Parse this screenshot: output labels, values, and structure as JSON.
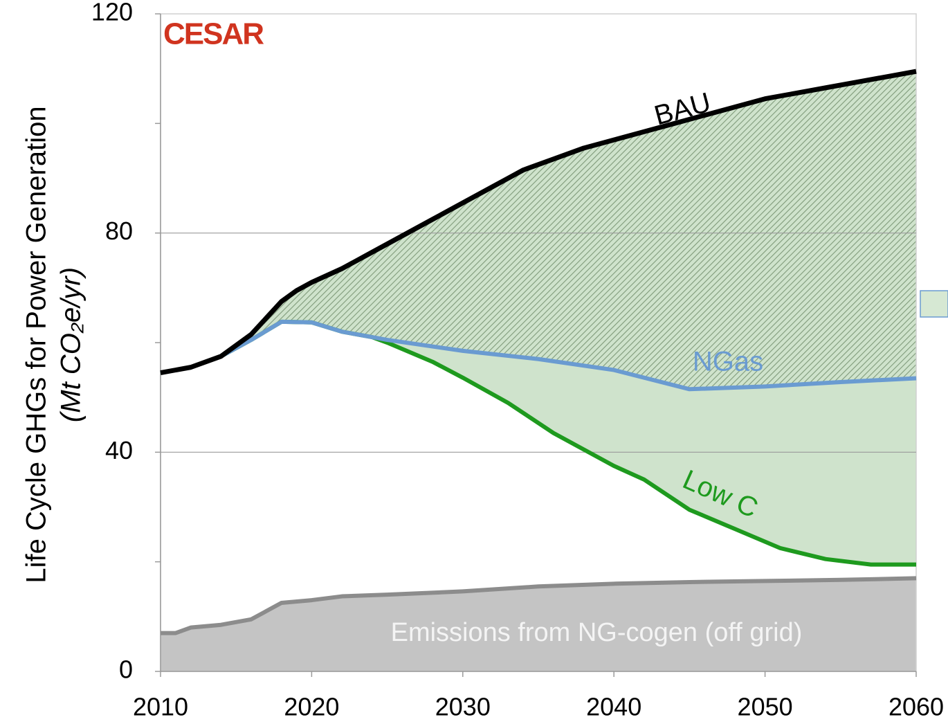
{
  "chart_data": {
    "type": "line",
    "logo": "CESAR",
    "y_label": "Life Cycle GHGs for Power Generation",
    "y_label_unit": "(Mt CO₂e/yr)",
    "xlim": [
      2010,
      2060
    ],
    "xticks": [
      2010,
      2020,
      2030,
      2040,
      2050,
      2060
    ],
    "ylim": [
      0,
      120
    ],
    "yticks": [
      0,
      40,
      80,
      120
    ],
    "minor_yticks": [
      20,
      60,
      100
    ],
    "grid": true,
    "series": [
      {
        "name": "BAU",
        "color": "#000000",
        "x": [
          2010,
          2012,
          2014,
          2016,
          2018,
          2019,
          2020,
          2022,
          2024,
          2026,
          2028,
          2030,
          2032,
          2034,
          2036,
          2038,
          2040,
          2042,
          2044,
          2046,
          2048,
          2050,
          2052,
          2054,
          2056,
          2058,
          2060
        ],
        "values": [
          54.5,
          55.5,
          57.5,
          61.5,
          67.5,
          69.5,
          71,
          73.5,
          76.5,
          79.5,
          82.5,
          85.5,
          88.5,
          91.5,
          93.5,
          95.5,
          97,
          98.5,
          100,
          101.5,
          103,
          104.5,
          105.5,
          106.5,
          107.5,
          108.5,
          109.5
        ]
      },
      {
        "name": "NGas",
        "color": "#6a9bd1",
        "x": [
          2010,
          2012,
          2014,
          2016,
          2018,
          2020,
          2022,
          2024,
          2025,
          2030,
          2035,
          2040,
          2045,
          2050,
          2055,
          2060
        ],
        "values": [
          54.5,
          55.5,
          57.5,
          60.5,
          63.8,
          63.7,
          62,
          61,
          60.5,
          58.5,
          57,
          55,
          51.5,
          52,
          52.8,
          53.5
        ]
      },
      {
        "name": "Low C",
        "color": "#1e9a1e",
        "x": [
          2010,
          2012,
          2014,
          2016,
          2018,
          2020,
          2022,
          2024,
          2025,
          2028,
          2030,
          2033,
          2036,
          2040,
          2042,
          2045,
          2048,
          2051,
          2054,
          2057,
          2060
        ],
        "values": [
          54.5,
          55.5,
          57.5,
          60.5,
          63.8,
          63.7,
          62,
          61,
          60,
          56.5,
          53.6,
          49,
          43.5,
          37.5,
          35,
          29.5,
          26,
          22.5,
          20.5,
          19.5,
          19.5
        ]
      },
      {
        "name": "Emissions from NG-cogen (off grid)",
        "color": "#8c8c8c",
        "x": [
          2010,
          2011,
          2012,
          2014,
          2016,
          2017,
          2018,
          2020,
          2022,
          2025,
          2030,
          2035,
          2040,
          2045,
          2050,
          2055,
          2060
        ],
        "values": [
          7,
          7,
          8,
          8.5,
          9.5,
          11,
          12.5,
          13,
          13.7,
          14,
          14.6,
          15.5,
          16,
          16.3,
          16.5,
          16.7,
          17
        ]
      }
    ]
  }
}
